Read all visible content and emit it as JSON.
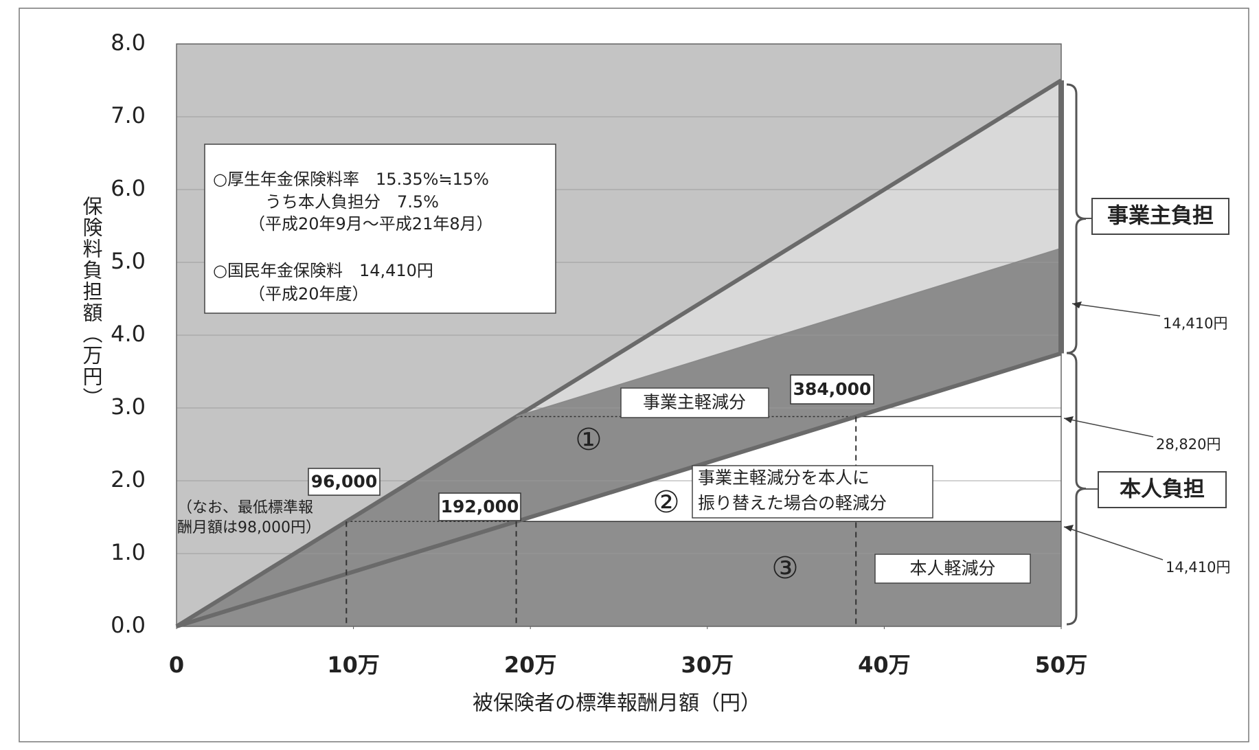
{
  "chart_data": {
    "type": "area",
    "x_label": "被保険者の標準報酬月額（円）",
    "y_label": "保険料負担額（万円）",
    "xlim": [
      0,
      500000
    ],
    "ylim": [
      0,
      8
    ],
    "xticks": [
      0,
      {
        "value": 100000,
        "label": "10万"
      },
      {
        "value": 200000,
        "label": "20万"
      },
      {
        "value": 300000,
        "label": "30万"
      },
      {
        "value": 400000,
        "label": "40万"
      },
      {
        "value": 500000,
        "label": "50万"
      }
    ],
    "yticks": [
      {
        "value": 0,
        "label": "0.0"
      },
      {
        "value": 1,
        "label": "1.0"
      },
      {
        "value": 2,
        "label": "2.0"
      },
      {
        "value": 3,
        "label": "3.0"
      },
      {
        "value": 4,
        "label": "4.0"
      },
      {
        "value": 5,
        "label": "5.0"
      },
      {
        "value": 6,
        "label": "6.0"
      },
      {
        "value": 7,
        "label": "7.0"
      },
      {
        "value": 8,
        "label": "8.0"
      }
    ],
    "grid": true,
    "series": [
      {
        "color": "#6a6a6a",
        "x": [
          0,
          500000
        ],
        "values": [
          0,
          7.5
        ]
      },
      {
        "color": "#6a6a6a",
        "x": [
          0,
          500000
        ],
        "values": [
          0,
          3.75
        ]
      },
      {
        "color": "#8a8a8a",
        "x": [
          192000,
          500000
        ],
        "values": [
          2.882,
          5.191
        ]
      }
    ],
    "markers": [
      {
        "x": 96000,
        "y": 1.441,
        "label": "96,000"
      },
      {
        "x": 192000,
        "y": 1.441,
        "label": "192,000"
      },
      {
        "x": 384000,
        "y": 2.882,
        "label": "384,000"
      }
    ],
    "notes": [
      "○厚生年金保険料率　15.35%≒15%",
      "うち本人負担分　7.5%",
      "（平成20年9月～平成21年8月）",
      "○国民年金保険料　14,410円",
      "（平成20年度）"
    ],
    "min_note": [
      "（なお、最低標準報",
      "酬月額は98,000円）"
    ],
    "annotations": [
      "事業主軽減分",
      "事業主軽減分を本人に",
      "振り替えた場合の軽減分",
      "本人軽減分",
      "①",
      "②",
      "③"
    ],
    "brackets": [
      "事業主負担",
      "本人負担"
    ],
    "amounts": [
      "14,410円",
      "28,820円",
      "14,410円"
    ]
  }
}
